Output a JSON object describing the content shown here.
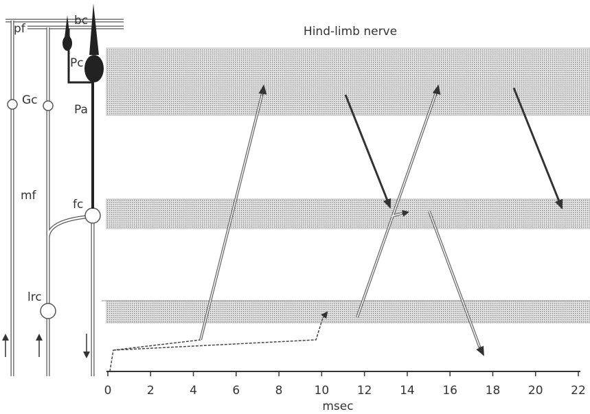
{
  "title": "Hind-limb nerve",
  "labels": {
    "pf": "pf",
    "bc": "bc",
    "Pc": "Pc",
    "Gc": "Gc",
    "Pa": "Pa",
    "mf": "mf",
    "fc": "fc",
    "lrc": "lrc"
  },
  "axis": {
    "label": "msec",
    "xlim": [
      0,
      22
    ],
    "xticks": [
      0,
      2,
      4,
      6,
      8,
      10,
      12,
      14,
      16,
      18,
      20,
      22
    ]
  }
}
